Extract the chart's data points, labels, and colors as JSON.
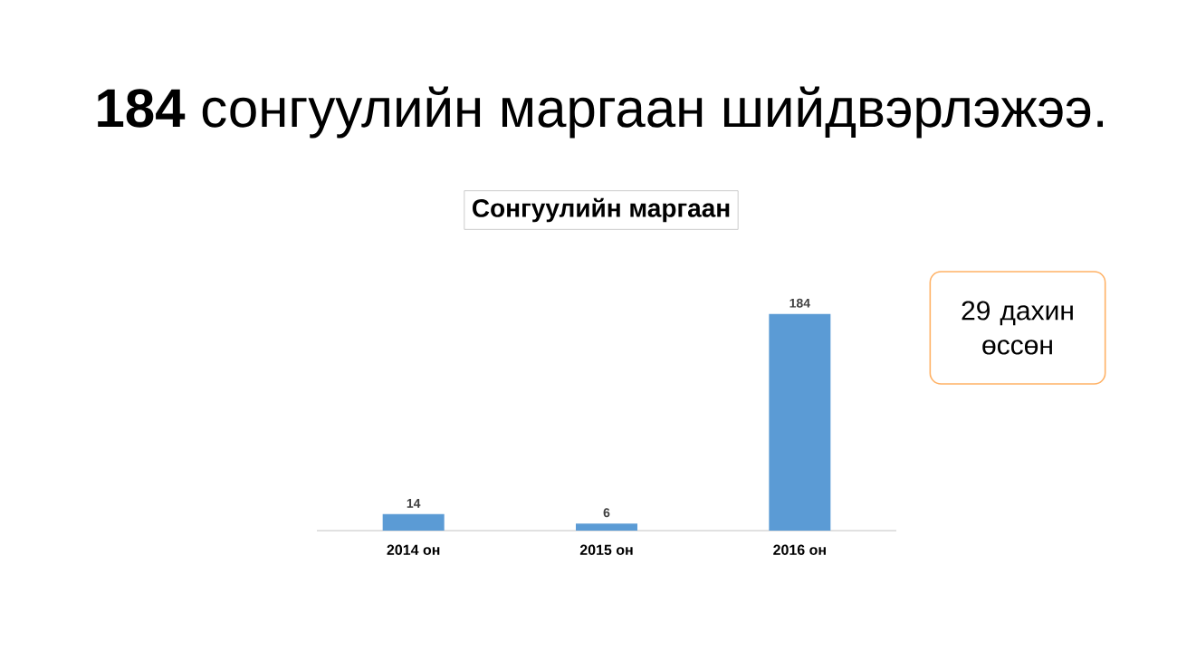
{
  "chart_data": {
    "type": "bar",
    "title": "**184** сонгуулийн маргаан шийдвэрлэжээ.",
    "subtitle": "Сонгуулийн маргаан",
    "categories": [
      "2014 он",
      "2015 он",
      "2016 он"
    ],
    "values": [
      14,
      6,
      184
    ],
    "color": "#5b9bd5",
    "data_labels": true,
    "annotations": [
      "29 дахин өссөн"
    ]
  }
}
